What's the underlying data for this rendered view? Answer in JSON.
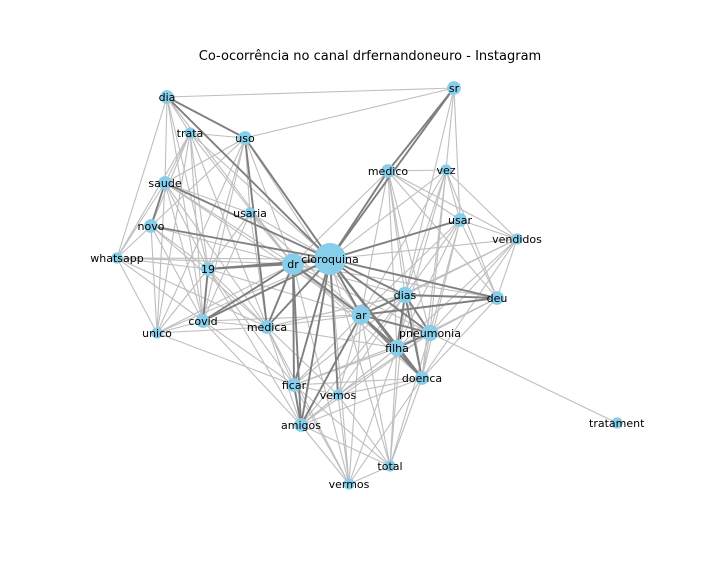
{
  "title": "Co-ocorrência no canal drfernandoneuro - Instagram",
  "colors": {
    "node": "#87ceeb",
    "edge_light": "#bebebe",
    "edge_dark": "#7f7f7f",
    "label": "#000000",
    "background": "#ffffff"
  },
  "nodes": [
    {
      "id": "cloroquina",
      "label": "cloroquina",
      "weight": 5
    },
    {
      "id": "dr",
      "label": "dr",
      "weight": 3
    },
    {
      "id": "ar",
      "label": "ar",
      "weight": 2.5
    },
    {
      "id": "dias",
      "label": "dias",
      "weight": 2
    },
    {
      "id": "pneumonia",
      "label": "pneumonia",
      "weight": 2
    },
    {
      "id": "filha",
      "label": "filha",
      "weight": 2
    },
    {
      "id": "doenca",
      "label": "doenca",
      "weight": 1.5
    },
    {
      "id": "medico",
      "label": "medico",
      "weight": 1.5
    },
    {
      "id": "sr",
      "label": "sr",
      "weight": 1.5
    },
    {
      "id": "dia",
      "label": "dia",
      "weight": 1.5
    },
    {
      "id": "trata",
      "label": "trata",
      "weight": 1
    },
    {
      "id": "uso",
      "label": "uso",
      "weight": 1.5
    },
    {
      "id": "saude",
      "label": "saude",
      "weight": 1.5
    },
    {
      "id": "novo",
      "label": "novo",
      "weight": 1.5
    },
    {
      "id": "usaria",
      "label": "usaria",
      "weight": 1
    },
    {
      "id": "whatsapp",
      "label": "whatsapp",
      "weight": 1
    },
    {
      "id": "n19",
      "label": "19",
      "weight": 1.5
    },
    {
      "id": "covid",
      "label": "covid",
      "weight": 1.5
    },
    {
      "id": "unico",
      "label": "unico",
      "weight": 1
    },
    {
      "id": "medica",
      "label": "medica",
      "weight": 1.5
    },
    {
      "id": "ficar",
      "label": "ficar",
      "weight": 1.5
    },
    {
      "id": "vemos",
      "label": "vemos",
      "weight": 1
    },
    {
      "id": "amigos",
      "label": "amigos",
      "weight": 1.5
    },
    {
      "id": "total",
      "label": "total",
      "weight": 1
    },
    {
      "id": "vermos",
      "label": "vermos",
      "weight": 1
    },
    {
      "id": "vez",
      "label": "vez",
      "weight": 1
    },
    {
      "id": "usar",
      "label": "usar",
      "weight": 1.5
    },
    {
      "id": "vendidos",
      "label": "vendidos",
      "weight": 1
    },
    {
      "id": "deu",
      "label": "deu",
      "weight": 1.5
    },
    {
      "id": "tratamento",
      "label": "tratament",
      "weight": 1
    }
  ],
  "edges_strong": [
    [
      "cloroquina",
      "dr"
    ],
    [
      "cloroquina",
      "ar"
    ],
    [
      "cloroquina",
      "medico"
    ],
    [
      "cloroquina",
      "sr"
    ],
    [
      "cloroquina",
      "uso"
    ],
    [
      "cloroquina",
      "dia"
    ],
    [
      "cloroquina",
      "novo"
    ],
    [
      "cloroquina",
      "saude"
    ],
    [
      "cloroquina",
      "n19"
    ],
    [
      "cloroquina",
      "covid"
    ],
    [
      "cloroquina",
      "medica"
    ],
    [
      "cloroquina",
      "ficar"
    ],
    [
      "cloroquina",
      "amigos"
    ],
    [
      "cloroquina",
      "dias"
    ],
    [
      "cloroquina",
      "filha"
    ],
    [
      "cloroquina",
      "pneumonia"
    ],
    [
      "cloroquina",
      "doenca"
    ],
    [
      "cloroquina",
      "usar"
    ],
    [
      "cloroquina",
      "deu"
    ],
    [
      "cloroquina",
      "vemos"
    ],
    [
      "dr",
      "n19"
    ],
    [
      "dr",
      "covid"
    ],
    [
      "dr",
      "medica"
    ],
    [
      "dr",
      "ficar"
    ],
    [
      "dr",
      "amigos"
    ],
    [
      "dr",
      "ar"
    ],
    [
      "ar",
      "filha"
    ],
    [
      "ar",
      "doenca"
    ],
    [
      "ar",
      "pneumonia"
    ],
    [
      "ar",
      "dias"
    ],
    [
      "ar",
      "amigos"
    ],
    [
      "ar",
      "deu"
    ],
    [
      "dias",
      "filha"
    ],
    [
      "dias",
      "doenca"
    ],
    [
      "dias",
      "pneumonia"
    ],
    [
      "dias",
      "deu"
    ],
    [
      "filha",
      "doenca"
    ],
    [
      "pneumonia",
      "filha"
    ],
    [
      "n19",
      "covid"
    ],
    [
      "saude",
      "novo"
    ],
    [
      "ficar",
      "amigos"
    ],
    [
      "medico",
      "sr"
    ],
    [
      "dia",
      "uso"
    ],
    [
      "uso",
      "medica"
    ]
  ],
  "edges_light": [
    [
      "dia",
      "trata"
    ],
    [
      "dia",
      "saude"
    ],
    [
      "dia",
      "whatsapp"
    ],
    [
      "dia",
      "n19"
    ],
    [
      "dia",
      "sr"
    ],
    [
      "dia",
      "covid"
    ],
    [
      "trata",
      "uso"
    ],
    [
      "trata",
      "saude"
    ],
    [
      "trata",
      "novo"
    ],
    [
      "trata",
      "whatsapp"
    ],
    [
      "trata",
      "n19"
    ],
    [
      "trata",
      "covid"
    ],
    [
      "trata",
      "unico"
    ],
    [
      "trata",
      "medica"
    ],
    [
      "trata",
      "dr"
    ],
    [
      "uso",
      "sr"
    ],
    [
      "uso",
      "saude"
    ],
    [
      "uso",
      "novo"
    ],
    [
      "uso",
      "usaria"
    ],
    [
      "uso",
      "n19"
    ],
    [
      "uso",
      "covid"
    ],
    [
      "uso",
      "unico"
    ],
    [
      "uso",
      "dr"
    ],
    [
      "saude",
      "whatsapp"
    ],
    [
      "saude",
      "n19"
    ],
    [
      "saude",
      "covid"
    ],
    [
      "saude",
      "unico"
    ],
    [
      "saude",
      "medica"
    ],
    [
      "saude",
      "dr"
    ],
    [
      "saude",
      "usaria"
    ],
    [
      "novo",
      "whatsapp"
    ],
    [
      "novo",
      "n19"
    ],
    [
      "novo",
      "covid"
    ],
    [
      "novo",
      "unico"
    ],
    [
      "novo",
      "medica"
    ],
    [
      "novo",
      "dr"
    ],
    [
      "whatsapp",
      "n19"
    ],
    [
      "whatsapp",
      "covid"
    ],
    [
      "whatsapp",
      "unico"
    ],
    [
      "whatsapp",
      "medica"
    ],
    [
      "whatsapp",
      "dr"
    ],
    [
      "n19",
      "unico"
    ],
    [
      "n19",
      "medica"
    ],
    [
      "n19",
      "ficar"
    ],
    [
      "n19",
      "amigos"
    ],
    [
      "n19",
      "usaria"
    ],
    [
      "covid",
      "unico"
    ],
    [
      "covid",
      "medica"
    ],
    [
      "covid",
      "ficar"
    ],
    [
      "covid",
      "amigos"
    ],
    [
      "covid",
      "usaria"
    ],
    [
      "unico",
      "medica"
    ],
    [
      "unico",
      "dr"
    ],
    [
      "unico",
      "ficar"
    ],
    [
      "medica",
      "ficar"
    ],
    [
      "medica",
      "amigos"
    ],
    [
      "medica",
      "vemos"
    ],
    [
      "medica",
      "vermos"
    ],
    [
      "medica",
      "ar"
    ],
    [
      "medica",
      "filha"
    ],
    [
      "medica",
      "dias"
    ],
    [
      "usaria",
      "dr"
    ],
    [
      "usaria",
      "cloroquina"
    ],
    [
      "usaria",
      "medica"
    ],
    [
      "ficar",
      "vemos"
    ],
    [
      "ficar",
      "vermos"
    ],
    [
      "ficar",
      "ar"
    ],
    [
      "ficar",
      "filha"
    ],
    [
      "ficar",
      "doenca"
    ],
    [
      "ficar",
      "total"
    ],
    [
      "ficar",
      "dias"
    ],
    [
      "vemos",
      "amigos"
    ],
    [
      "vemos",
      "ar"
    ],
    [
      "vemos",
      "filha"
    ],
    [
      "vemos",
      "doenca"
    ],
    [
      "vemos",
      "dias"
    ],
    [
      "vemos",
      "pneumonia"
    ],
    [
      "vemos",
      "total"
    ],
    [
      "vemos",
      "vermos"
    ],
    [
      "amigos",
      "vermos"
    ],
    [
      "amigos",
      "total"
    ],
    [
      "amigos",
      "doenca"
    ],
    [
      "amigos",
      "filha"
    ],
    [
      "amigos",
      "pneumonia"
    ],
    [
      "amigos",
      "dias"
    ],
    [
      "vermos",
      "ar"
    ],
    [
      "vermos",
      "filha"
    ],
    [
      "vermos",
      "doenca"
    ],
    [
      "vermos",
      "total"
    ],
    [
      "vermos",
      "cloroquina"
    ],
    [
      "vermos",
      "dr"
    ],
    [
      "total",
      "ar"
    ],
    [
      "total",
      "filha"
    ],
    [
      "total",
      "doenca"
    ],
    [
      "total",
      "cloroquina"
    ],
    [
      "total",
      "dias"
    ],
    [
      "total",
      "pneumonia"
    ],
    [
      "sr",
      "vez"
    ],
    [
      "sr",
      "medico"
    ],
    [
      "sr",
      "usar"
    ],
    [
      "sr",
      "dias"
    ],
    [
      "medico",
      "vez"
    ],
    [
      "medico",
      "usar"
    ],
    [
      "medico",
      "vendidos"
    ],
    [
      "medico",
      "dias"
    ],
    [
      "medico",
      "filha"
    ],
    [
      "medico",
      "doenca"
    ],
    [
      "medico",
      "pneumonia"
    ],
    [
      "medico",
      "deu"
    ],
    [
      "medico",
      "ar"
    ],
    [
      "medico",
      "dr"
    ],
    [
      "vez",
      "usar"
    ],
    [
      "vez",
      "vendidos"
    ],
    [
      "vez",
      "dias"
    ],
    [
      "vez",
      "filha"
    ],
    [
      "vez",
      "pneumonia"
    ],
    [
      "vez",
      "doenca"
    ],
    [
      "vez",
      "ar"
    ],
    [
      "vez",
      "deu"
    ],
    [
      "vez",
      "cloroquina"
    ],
    [
      "usar",
      "vendidos"
    ],
    [
      "usar",
      "dias"
    ],
    [
      "usar",
      "pneumonia"
    ],
    [
      "usar",
      "filha"
    ],
    [
      "usar",
      "doenca"
    ],
    [
      "usar",
      "deu"
    ],
    [
      "usar",
      "ar"
    ],
    [
      "vendidos",
      "cloroquina"
    ],
    [
      "vendidos",
      "dias"
    ],
    [
      "vendidos",
      "pneumonia"
    ],
    [
      "vendidos",
      "filha"
    ],
    [
      "vendidos",
      "doenca"
    ],
    [
      "vendidos",
      "deu"
    ],
    [
      "vendidos",
      "ar"
    ],
    [
      "deu",
      "pneumonia"
    ],
    [
      "deu",
      "filha"
    ],
    [
      "deu",
      "doenca"
    ],
    [
      "deu",
      "dr"
    ],
    [
      "pneumonia",
      "doenca"
    ],
    [
      "pneumonia",
      "tratamento"
    ],
    [
      "pneumonia",
      "dr"
    ],
    [
      "dias",
      "medica"
    ],
    [
      "dias",
      "dr"
    ],
    [
      "filha",
      "dr"
    ],
    [
      "doenca",
      "dr"
    ],
    [
      "ar",
      "usaria"
    ],
    [
      "uso",
      "ar"
    ],
    [
      "dia",
      "dr"
    ],
    [
      "trata",
      "cloroquina"
    ],
    [
      "whatsapp",
      "cloroquina"
    ],
    [
      "unico",
      "cloroquina"
    ],
    [
      "amigos",
      "ar"
    ],
    [
      "ficar",
      "pneumonia"
    ],
    [
      "covid",
      "ar"
    ],
    [
      "n19",
      "ar"
    ],
    [
      "saude",
      "ar"
    ]
  ]
}
